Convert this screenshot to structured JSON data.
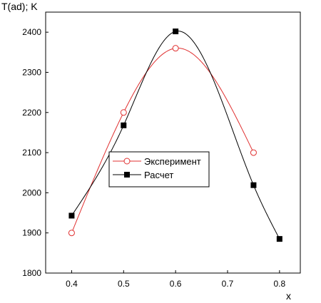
{
  "chart_data": {
    "type": "line",
    "ylabel": "T(ad); K",
    "xlabel": "x",
    "xlim": [
      0.35,
      0.84
    ],
    "ylim": [
      1800,
      2450
    ],
    "xticks": [
      0.4,
      0.5,
      0.6,
      0.7,
      0.8
    ],
    "yticks": [
      1800,
      1900,
      2000,
      2100,
      2200,
      2300,
      2400
    ],
    "xtick_labels": [
      "0.4",
      "0.5",
      "0.6",
      "0.7",
      "0.8"
    ],
    "ytick_labels": [
      "1800",
      "1900",
      "2000",
      "2100",
      "2200",
      "2300",
      "2400"
    ],
    "grid": false,
    "legend_position": "center-left",
    "series": [
      {
        "name": "Эксперимент",
        "marker": "open-circle",
        "color": "#e03030",
        "x": [
          0.4,
          0.5,
          0.6,
          0.75
        ],
        "y": [
          1900,
          2200,
          2360,
          2100
        ]
      },
      {
        "name": "Расчет",
        "marker": "filled-square",
        "color": "#000000",
        "x": [
          0.4,
          0.5,
          0.6,
          0.75,
          0.8
        ],
        "y": [
          1943,
          2168,
          2402,
          2019,
          1885
        ]
      }
    ]
  }
}
